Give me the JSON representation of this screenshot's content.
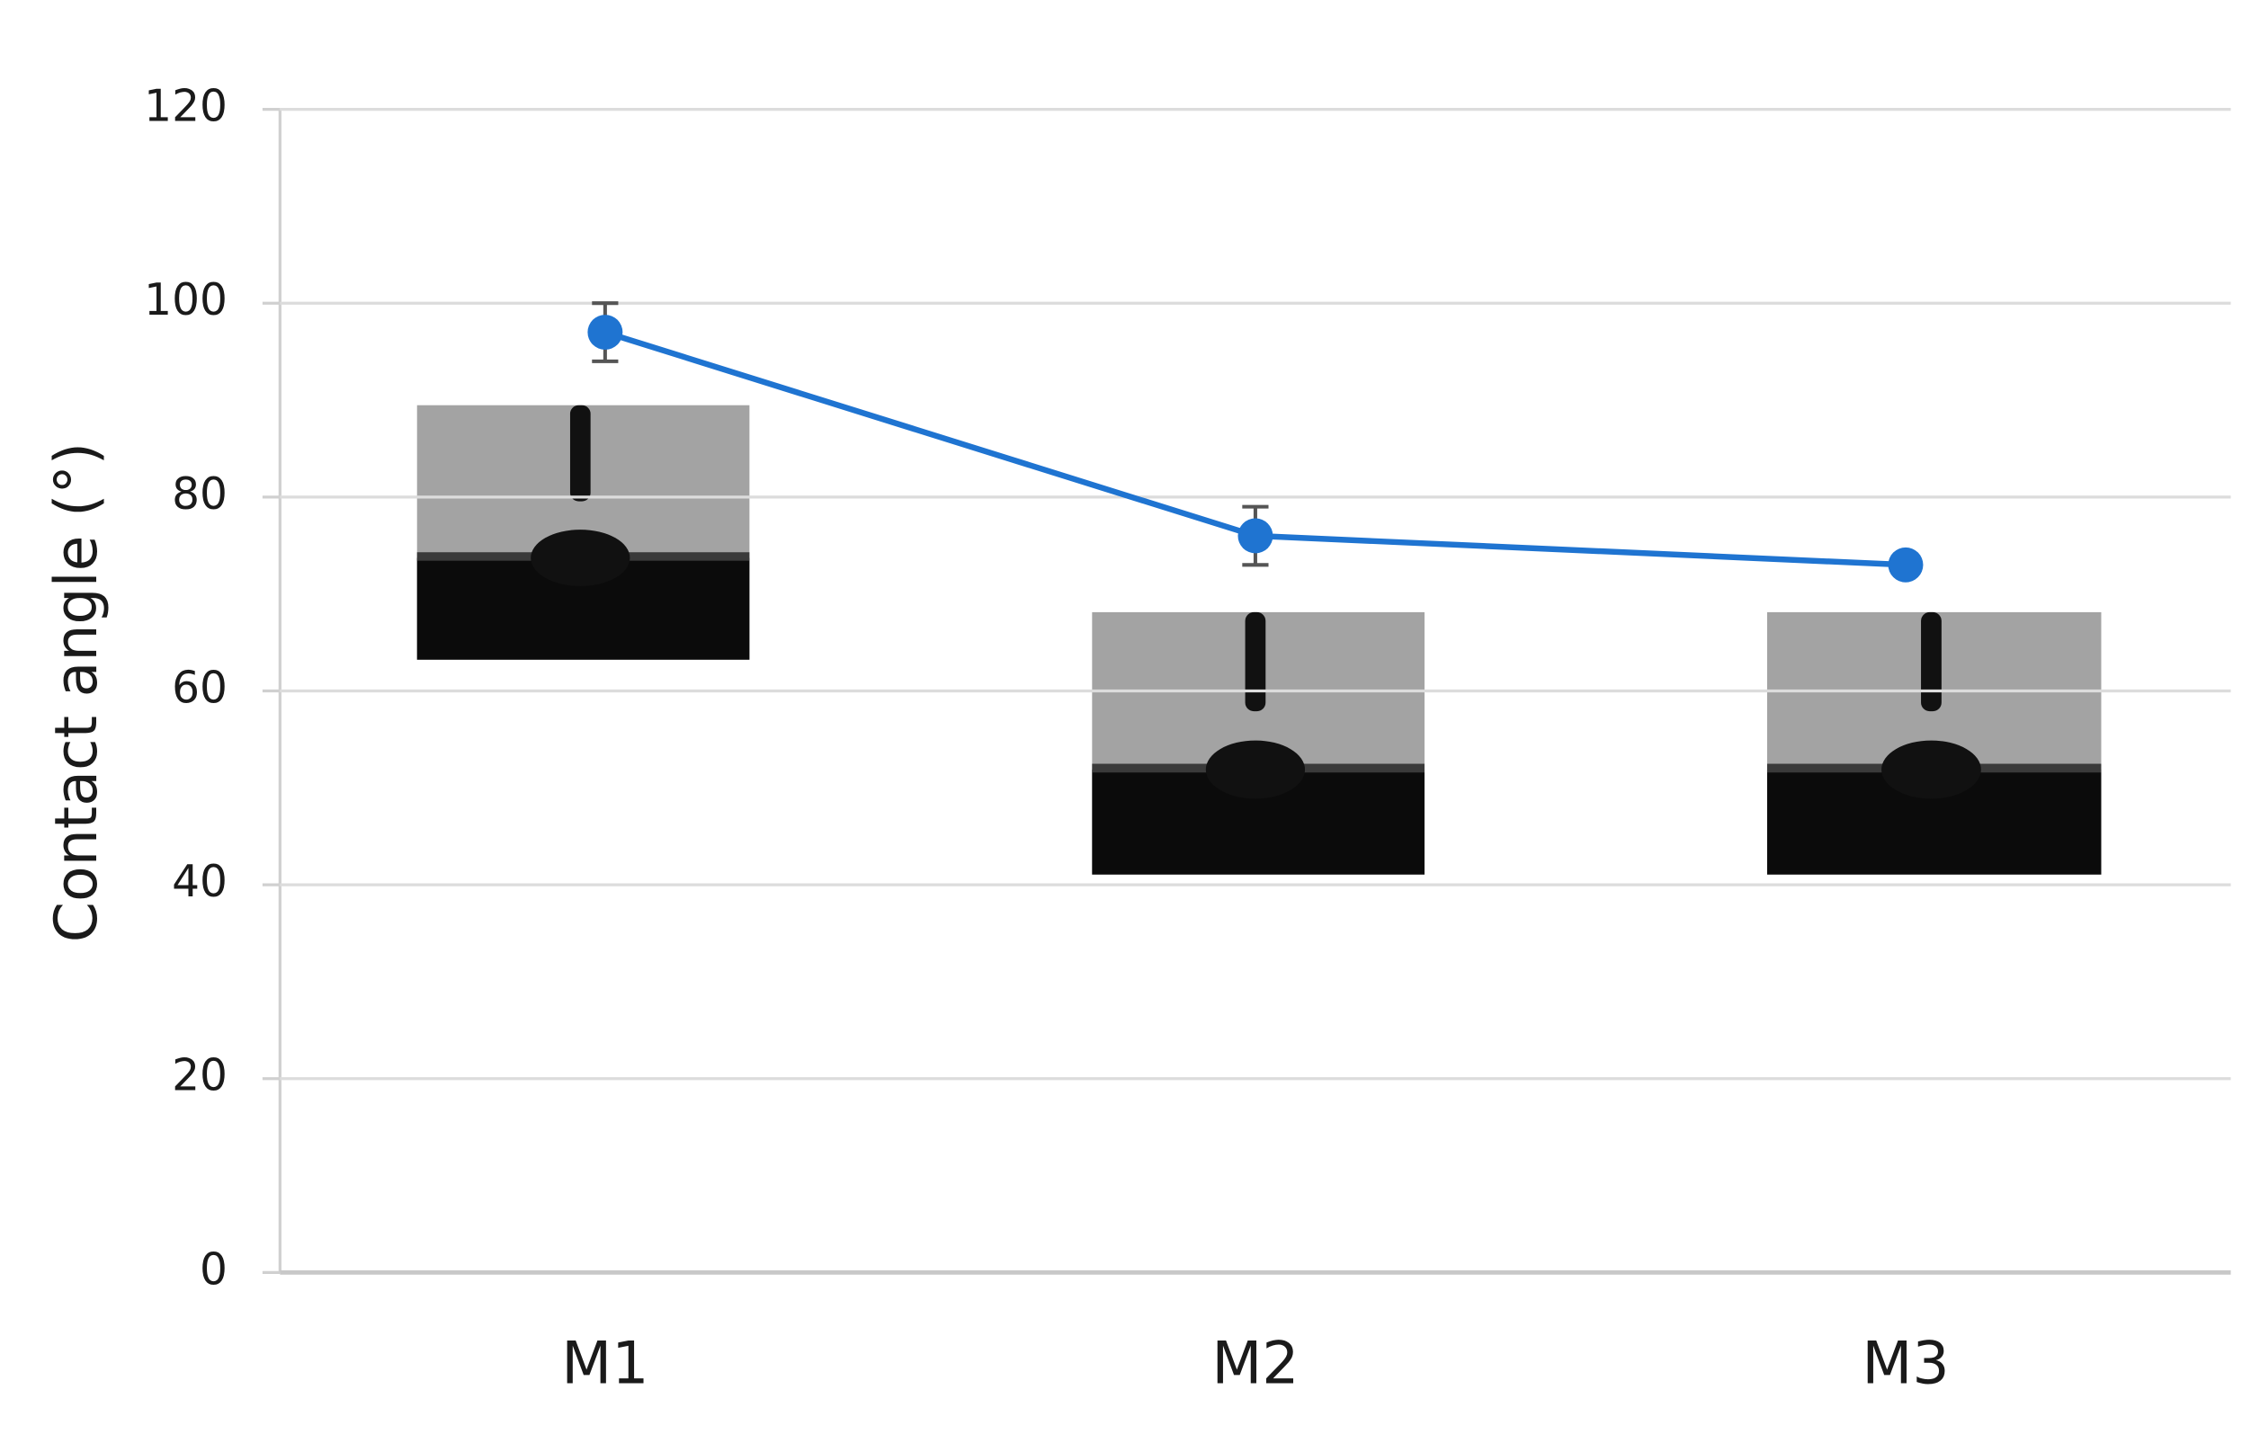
{
  "chart_data": {
    "type": "line",
    "y_label": "Contact angle (°)",
    "categories": [
      "M1",
      "M2",
      "M3"
    ],
    "series": [
      {
        "color": "#1f74d1",
        "values": [
          97,
          76,
          73
        ],
        "errors": [
          3,
          3,
          null
        ]
      }
    ],
    "ylim": [
      0,
      120
    ],
    "yticks": [
      0,
      20,
      40,
      60,
      80,
      100,
      120
    ],
    "grid": true
  }
}
